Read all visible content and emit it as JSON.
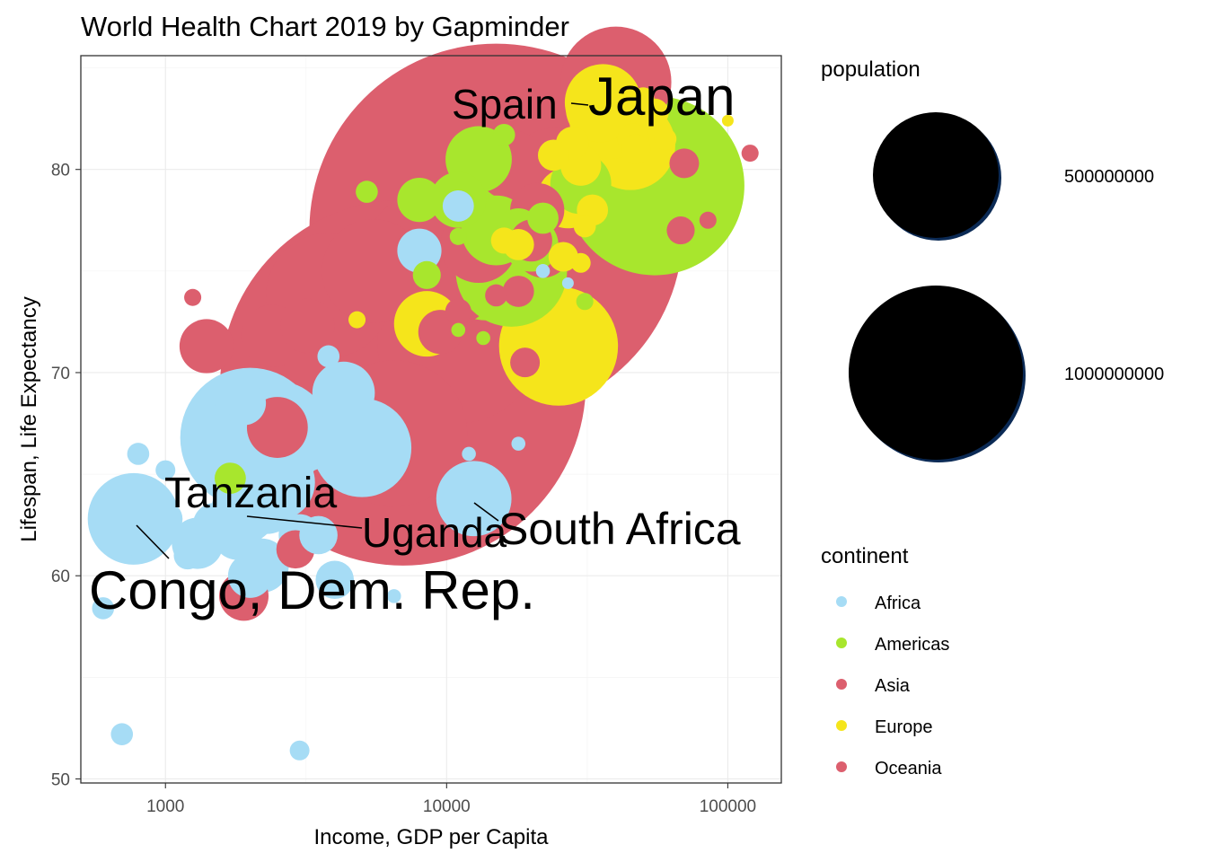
{
  "chart_data": {
    "type": "scatter",
    "title": "World Health Chart 2019 by Gapminder",
    "xlabel": "Income, GDP per Capita",
    "ylabel": "Lifespan, Life Expectancy",
    "x_scale": "log10",
    "xlim": [
      500,
      155000
    ],
    "ylim": [
      49.8,
      85.6
    ],
    "x_ticks": [
      1000,
      10000,
      100000
    ],
    "x_tick_labels": [
      "1000",
      "10000",
      "100000"
    ],
    "y_ticks": [
      50,
      60,
      70,
      80
    ],
    "y_tick_labels": [
      "50",
      "60",
      "70",
      "80"
    ],
    "grid": true,
    "legend_position": "right",
    "size_legend": {
      "title": "population",
      "entries": [
        {
          "label": "500000000",
          "value": 500000000
        },
        {
          "label": "1000000000",
          "value": 1000000000
        }
      ]
    },
    "color_legend": {
      "title": "continent",
      "entries": [
        {
          "label": "Africa",
          "color": "#a6dcf5"
        },
        {
          "label": "Americas",
          "color": "#a8e62d"
        },
        {
          "label": "Asia",
          "color": "#dc5f6e"
        },
        {
          "label": "Europe",
          "color": "#f5e51b"
        },
        {
          "label": "Oceania",
          "color": "#dc5f6e"
        }
      ]
    },
    "annotations": [
      {
        "text": "Japan",
        "country_x": 41000,
        "country_y": 84.3,
        "size": "large"
      },
      {
        "text": "Spain",
        "country_x": 30000,
        "country_y": 83.0,
        "size": "medium"
      },
      {
        "text": "Tanzania",
        "country_x": 2500,
        "country_y": 64.6,
        "size": "medium"
      },
      {
        "text": "Uganda",
        "country_x": 1900,
        "country_y": 63.2,
        "size": "medium"
      },
      {
        "text": "South Africa",
        "country_x": 12500,
        "country_y": 63.8,
        "size": "medium"
      },
      {
        "text": "Congo, Dem. Rep.",
        "country_x": 770,
        "country_y": 62.8,
        "size": "xlarge"
      }
    ],
    "series": [
      {
        "name": "Asia",
        "color": "#dc5f6e",
        "points": [
          [
            15000,
            77.0,
            1430000000
          ],
          [
            7000,
            69.5,
            1370000000
          ],
          [
            11000,
            71.5,
            270000000
          ],
          [
            3800,
            73.8,
            160000000
          ],
          [
            5500,
            75.0,
            110000000
          ],
          [
            6500,
            67.0,
            220000000
          ],
          [
            9000,
            75.5,
            210000000
          ],
          [
            40000,
            84.3,
            126000000
          ],
          [
            24000,
            79.8,
            85000000
          ],
          [
            13000,
            76.3,
            60000000
          ],
          [
            2400,
            71.8,
            40000000
          ],
          [
            1400,
            71.3,
            30000000
          ],
          [
            2500,
            67.3,
            38000000
          ],
          [
            3200,
            72.3,
            30000000
          ],
          [
            17000,
            80.2,
            50000000
          ],
          [
            21000,
            78.0,
            30000000
          ],
          [
            68000,
            77.0,
            8000000
          ],
          [
            70000,
            80.3,
            9000000
          ],
          [
            120000,
            80.8,
            3000000
          ],
          [
            85000,
            77.5,
            3000000
          ],
          [
            1900,
            59.0,
            25000000
          ],
          [
            2900,
            61.3,
            15000000
          ],
          [
            1250,
            73.7,
            3000000
          ],
          [
            9500,
            72.0,
            20000000
          ],
          [
            22000,
            76.0,
            30000000
          ],
          [
            15000,
            73.8,
            5000000
          ],
          [
            19000,
            70.5,
            9000000
          ],
          [
            18000,
            74.0,
            10000000
          ],
          [
            11000,
            73.0,
            7000000
          ],
          [
            20000,
            76.5,
            18000000
          ],
          [
            19000,
            70.6,
            5000000
          ]
        ]
      },
      {
        "name": "Europe",
        "color": "#f5e51b",
        "points": [
          [
            35000,
            83.0,
            47000000
          ],
          [
            45000,
            81.2,
            83000000
          ],
          [
            38000,
            82.5,
            67000000
          ],
          [
            36000,
            83.3,
            60000000
          ],
          [
            25000,
            71.3,
            145000000
          ],
          [
            27000,
            78.6,
            38000000
          ],
          [
            8500,
            72.4,
            44000000
          ],
          [
            4800,
            72.6,
            3000000
          ],
          [
            50000,
            83.5,
            5000000
          ],
          [
            100000,
            82.4,
            1000000
          ],
          [
            26000,
            75.7,
            9000000
          ],
          [
            18000,
            76.3,
            10000000
          ],
          [
            30000,
            80.2,
            17000000
          ],
          [
            46000,
            81.5,
            10000000
          ],
          [
            55000,
            82.8,
            8000000
          ],
          [
            28000,
            81.3,
            11000000
          ],
          [
            33000,
            78.0,
            10000000
          ],
          [
            47000,
            81.0,
            9000000
          ],
          [
            16000,
            76.5,
            7000000
          ],
          [
            31000,
            77.2,
            5000000
          ],
          [
            30000,
            75.4,
            4000000
          ],
          [
            60000,
            81.5,
            5000000
          ],
          [
            24000,
            80.7,
            10000000
          ]
        ]
      },
      {
        "name": "Americas",
        "color": "#a8e62d",
        "points": [
          [
            55000,
            79.2,
            329000000
          ],
          [
            14000,
            76.1,
            211000000
          ],
          [
            17000,
            75.0,
            127000000
          ],
          [
            13000,
            80.5,
            45000000
          ],
          [
            15000,
            77.0,
            50000000
          ],
          [
            16000,
            81.7,
            5000000
          ],
          [
            11000,
            78.5,
            32000000
          ],
          [
            8000,
            78.5,
            20000000
          ],
          [
            5200,
            78.9,
            5000000
          ],
          [
            22000,
            77.6,
            10000000
          ],
          [
            18000,
            77.0,
            20000000
          ],
          [
            8500,
            74.8,
            8000000
          ],
          [
            20000,
            76.3,
            30000000
          ],
          [
            30000,
            79.3,
            38000000
          ],
          [
            31000,
            73.5,
            3000000
          ],
          [
            11000,
            72.1,
            2000000
          ],
          [
            13500,
            71.7,
            2000000
          ],
          [
            1700,
            64.8,
            10000000
          ],
          [
            11000,
            76.7,
            3000000
          ]
        ]
      },
      {
        "name": "Africa",
        "color": "#a6dcf5",
        "points": [
          [
            770,
            62.8,
            86000000
          ],
          [
            2000,
            66.8,
            200000000
          ],
          [
            5000,
            66.3,
            100000000
          ],
          [
            2500,
            67.0,
            112000000
          ],
          [
            3100,
            67.0,
            60000000
          ],
          [
            12500,
            63.8,
            58000000
          ],
          [
            4300,
            69.0,
            40000000
          ],
          [
            2500,
            64.6,
            58000000
          ],
          [
            1900,
            63.2,
            44000000
          ],
          [
            2300,
            63.5,
            35000000
          ],
          [
            1300,
            61.6,
            27000000
          ],
          [
            700,
            61.6,
            10000000
          ],
          [
            1000,
            62.8,
            12000000
          ],
          [
            2000,
            65.0,
            20000000
          ],
          [
            3500,
            62.0,
            15000000
          ],
          [
            2200,
            60.5,
            30000000
          ],
          [
            4000,
            59.8,
            15000000
          ],
          [
            2000,
            60.0,
            20000000
          ],
          [
            1500,
            62.5,
            20000000
          ],
          [
            1900,
            68.5,
            20000000
          ],
          [
            1500,
            68.0,
            3000000
          ],
          [
            2500,
            63.0,
            10000000
          ],
          [
            600,
            58.4,
            5000000
          ],
          [
            700,
            52.2,
            5000000
          ],
          [
            3000,
            51.4,
            4000000
          ],
          [
            800,
            66.0,
            5000000
          ],
          [
            3800,
            70.8,
            5000000
          ],
          [
            8000,
            76.0,
            20000000
          ],
          [
            11000,
            78.2,
            10000000
          ],
          [
            12000,
            66.0,
            2000000
          ],
          [
            18000,
            66.5,
            2000000
          ],
          [
            22000,
            75.0,
            2000000
          ],
          [
            27000,
            74.4,
            1000000
          ],
          [
            6500,
            59.0,
            2000000
          ],
          [
            3000,
            62.0,
            18000000
          ],
          [
            1800,
            62.0,
            25000000
          ],
          [
            1600,
            68.2,
            3000000
          ],
          [
            1000,
            65.2,
            4000000
          ],
          [
            1200,
            61.0,
            8000000
          ]
        ]
      }
    ]
  }
}
